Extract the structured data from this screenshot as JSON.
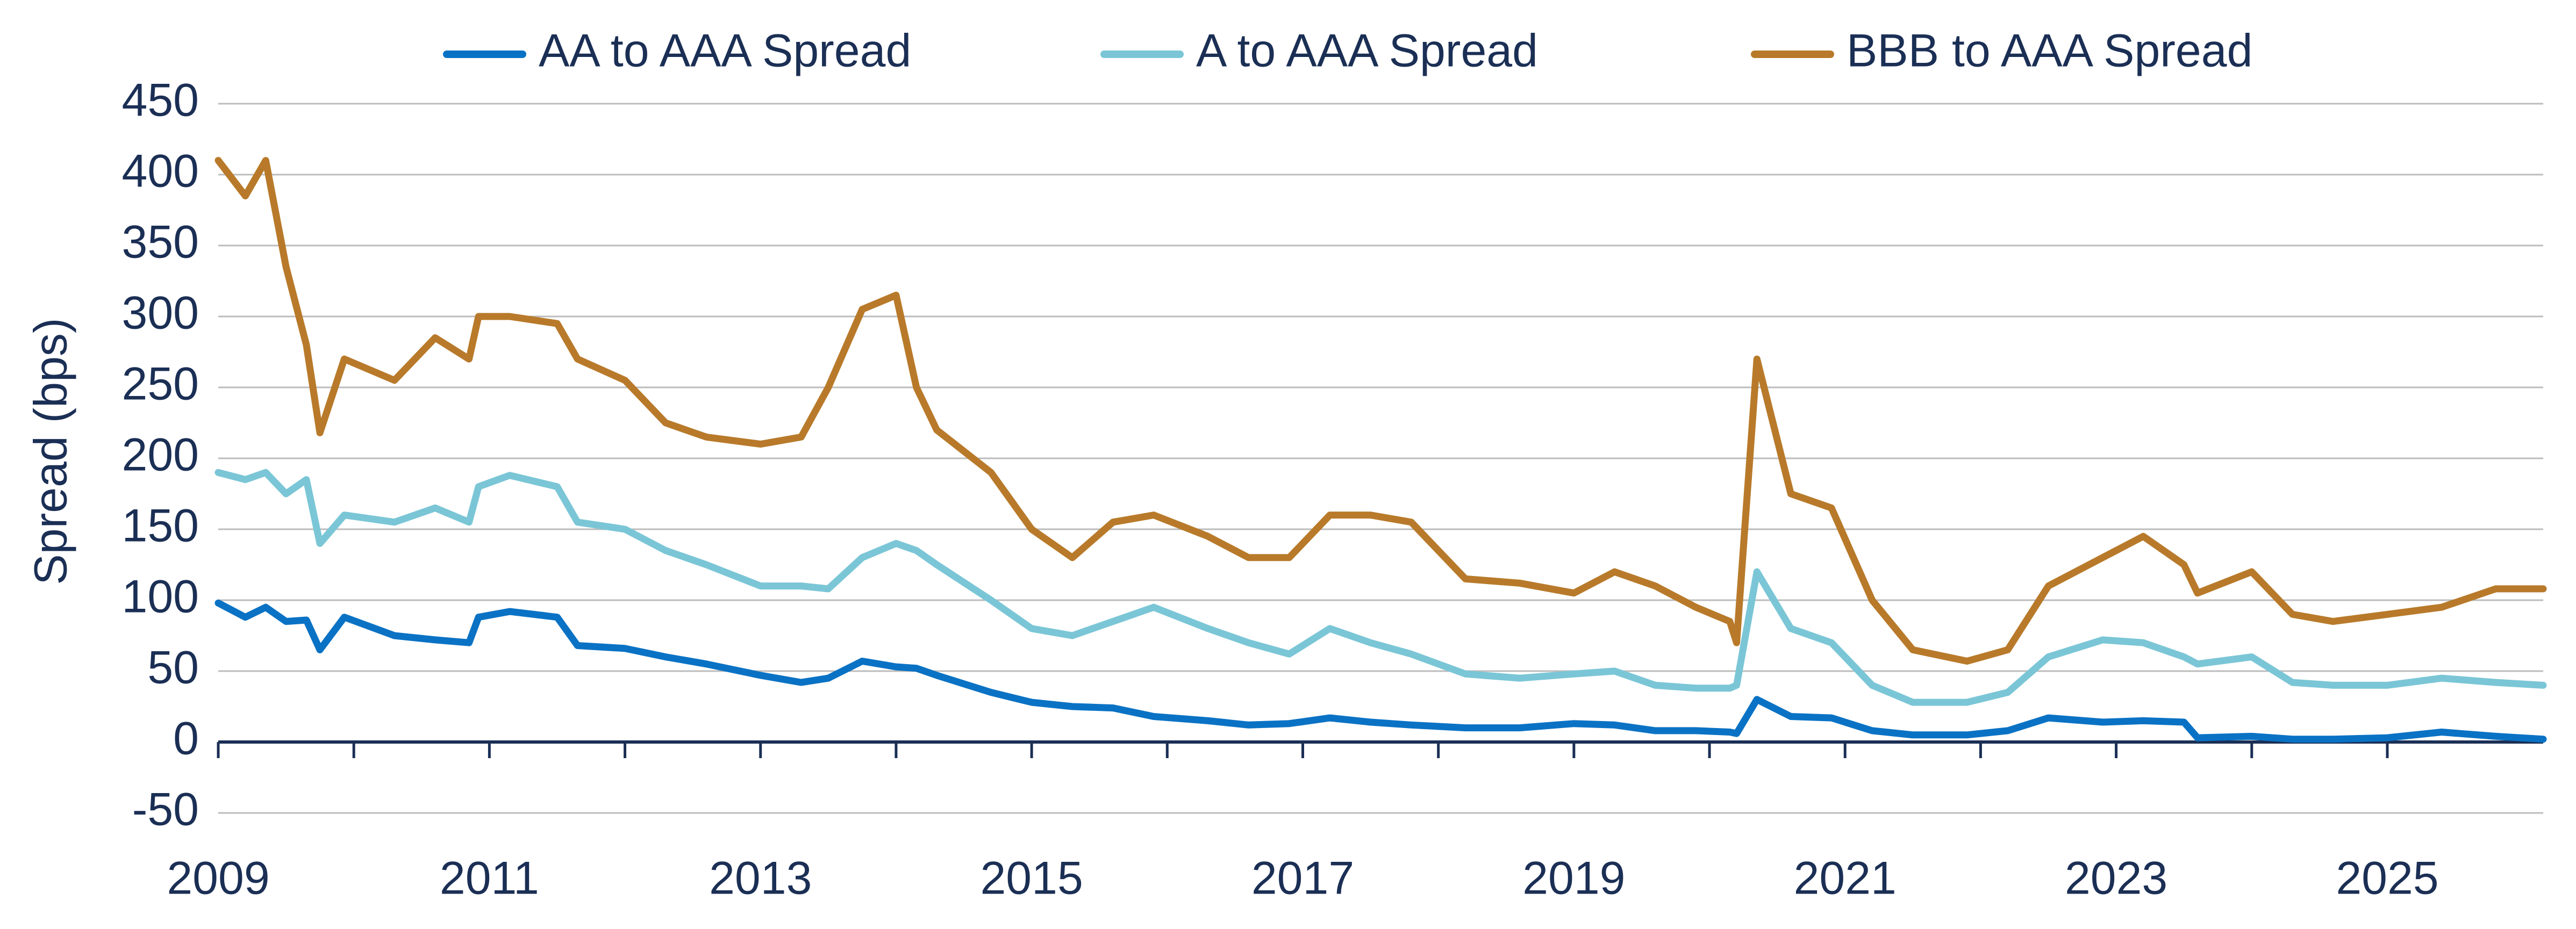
{
  "chart_data": {
    "type": "line",
    "y_label": "Spread (bps)",
    "x": [
      2009.0,
      2009.2,
      2009.35,
      2009.5,
      2009.65,
      2009.75,
      2009.93,
      2010.3,
      2010.6,
      2010.85,
      2010.92,
      2011.15,
      2011.5,
      2011.65,
      2012.0,
      2012.3,
      2012.6,
      2013.0,
      2013.3,
      2013.5,
      2013.75,
      2014.0,
      2014.15,
      2014.3,
      2014.7,
      2015.0,
      2015.3,
      2015.6,
      2015.9,
      2016.3,
      2016.6,
      2016.9,
      2017.2,
      2017.5,
      2017.8,
      2018.2,
      2018.6,
      2019.0,
      2019.3,
      2019.6,
      2019.9,
      2020.15,
      2020.2,
      2020.35,
      2020.6,
      2020.9,
      2021.2,
      2021.5,
      2021.9,
      2022.2,
      2022.5,
      2022.9,
      2023.2,
      2023.5,
      2023.6,
      2024.0,
      2024.3,
      2024.6,
      2025.0,
      2025.4,
      2025.8,
      2026.15
    ],
    "series": [
      {
        "name": "AA to AAA Spread",
        "color": "#0a72c4",
        "values": [
          98,
          88,
          95,
          85,
          86,
          65,
          88,
          75,
          72,
          70,
          88,
          92,
          88,
          68,
          66,
          60,
          55,
          47,
          42,
          45,
          57,
          53,
          52,
          47,
          35,
          28,
          25,
          24,
          18,
          15,
          12,
          13,
          17,
          14,
          12,
          10,
          10,
          13,
          12,
          8,
          8,
          7,
          6,
          30,
          18,
          17,
          8,
          5,
          5,
          8,
          17,
          14,
          15,
          14,
          3,
          4,
          2,
          2,
          3,
          7,
          4,
          2
        ]
      },
      {
        "name": "A to AAA Spread",
        "color": "#7ac6d6",
        "values": [
          190,
          185,
          190,
          175,
          185,
          140,
          160,
          155,
          165,
          155,
          180,
          188,
          180,
          155,
          150,
          135,
          125,
          110,
          110,
          108,
          130,
          140,
          135,
          125,
          100,
          80,
          75,
          85,
          95,
          80,
          70,
          62,
          80,
          70,
          62,
          48,
          45,
          48,
          50,
          40,
          38,
          38,
          40,
          120,
          80,
          70,
          40,
          28,
          28,
          35,
          60,
          72,
          70,
          60,
          55,
          60,
          42,
          40,
          40,
          45,
          42,
          40
        ]
      },
      {
        "name": "BBB to AAA Spread",
        "color": "#b87a2a",
        "values": [
          410,
          385,
          410,
          335,
          280,
          218,
          270,
          255,
          285,
          270,
          300,
          300,
          295,
          270,
          255,
          225,
          215,
          210,
          215,
          250,
          305,
          315,
          250,
          220,
          190,
          150,
          130,
          155,
          160,
          145,
          130,
          130,
          160,
          160,
          155,
          115,
          112,
          105,
          120,
          110,
          95,
          85,
          70,
          270,
          175,
          165,
          100,
          65,
          57,
          65,
          110,
          130,
          145,
          125,
          105,
          120,
          90,
          85,
          90,
          95,
          108,
          108
        ]
      }
    ],
    "xlim": [
      2009,
      2026.15
    ],
    "xticks": [
      2009,
      2011,
      2013,
      2015,
      2017,
      2019,
      2021,
      2023,
      2025
    ],
    "ylim": [
      -50,
      450
    ],
    "yticks": [
      -50,
      0,
      50,
      100,
      150,
      200,
      250,
      300,
      350,
      400,
      450
    ],
    "grid": true,
    "legend": "top"
  }
}
